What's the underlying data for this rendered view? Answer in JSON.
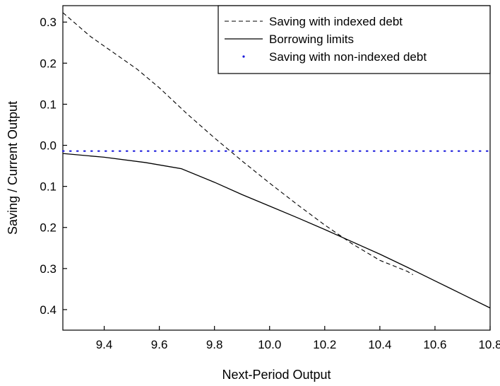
{
  "chart_data": {
    "type": "line",
    "title": "",
    "xlabel": "Next-Period Output",
    "ylabel": "Saving / Current Output",
    "xlim": [
      9.25,
      10.8
    ],
    "ylim": [
      -0.45,
      0.34
    ],
    "x_ticks": [
      {
        "value": 9.4,
        "label": "9.4"
      },
      {
        "value": 9.6,
        "label": "9.6"
      },
      {
        "value": 9.8,
        "label": "9.8"
      },
      {
        "value": 10.0,
        "label": "10.0"
      },
      {
        "value": 10.2,
        "label": "10.2"
      },
      {
        "value": 10.4,
        "label": "10.4"
      },
      {
        "value": 10.6,
        "label": "10.6"
      },
      {
        "value": 10.8,
        "label": "10.8"
      }
    ],
    "y_ticks": [
      {
        "value": 0.3,
        "label": "0.3"
      },
      {
        "value": 0.2,
        "label": "0.2"
      },
      {
        "value": 0.1,
        "label": "0.1"
      },
      {
        "value": 0.0,
        "label": "0.0"
      },
      {
        "value": -0.1,
        "label": "0.1"
      },
      {
        "value": -0.2,
        "label": "0.2"
      },
      {
        "value": -0.3,
        "label": "0.3"
      },
      {
        "value": -0.4,
        "label": "0.4"
      }
    ],
    "legend_position": "top-right",
    "grid": false,
    "series": [
      {
        "name": "Saving with indexed debt",
        "style": "dashed",
        "color": "#000000",
        "x": [
          9.25,
          9.35,
          9.45,
          9.52,
          9.6,
          9.7,
          9.8,
          9.9,
          10.0,
          10.1,
          10.2,
          10.3,
          10.4,
          10.5,
          10.52
        ],
        "y": [
          0.323,
          0.265,
          0.218,
          0.185,
          0.14,
          0.077,
          0.018,
          -0.038,
          -0.092,
          -0.144,
          -0.194,
          -0.24,
          -0.28,
          -0.307,
          -0.315
        ]
      },
      {
        "name": "Borrowing limits",
        "style": "solid",
        "color": "#000000",
        "x": [
          9.25,
          9.4,
          9.55,
          9.68,
          9.8,
          9.9,
          10.0,
          10.1,
          10.2,
          10.3,
          10.4,
          10.5,
          10.6,
          10.7,
          10.8
        ],
        "y": [
          -0.02,
          -0.029,
          -0.042,
          -0.057,
          -0.09,
          -0.12,
          -0.148,
          -0.176,
          -0.205,
          -0.235,
          -0.265,
          -0.297,
          -0.33,
          -0.363,
          -0.396
        ]
      },
      {
        "name": "Saving with non-indexed debt",
        "style": "dotted",
        "color": "#1a1adb",
        "x": [
          9.25,
          10.8
        ],
        "y": [
          -0.014,
          -0.014
        ]
      }
    ]
  }
}
